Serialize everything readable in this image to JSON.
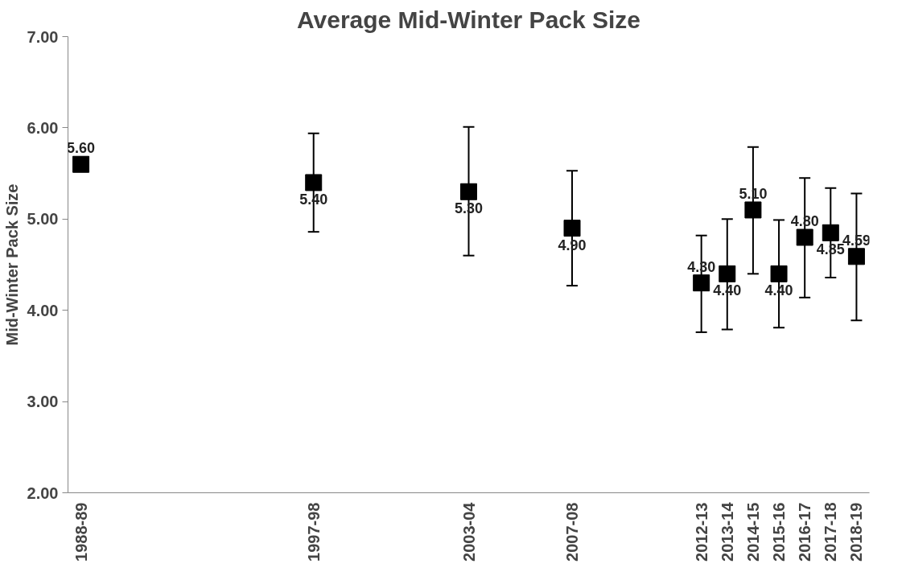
{
  "chart_data": {
    "type": "scatter",
    "title": "Average Mid-Winter Pack Size",
    "ylabel": "Mid-Winter Pack Size",
    "categories": [
      "1988-89",
      null,
      null,
      null,
      null,
      null,
      null,
      null,
      null,
      "1997-98",
      null,
      null,
      null,
      null,
      null,
      "2003-04",
      null,
      null,
      null,
      "2007-08",
      null,
      null,
      null,
      null,
      "2012-13",
      "2013-14",
      "2014-15",
      "2015-16",
      "2016-17",
      "2017-18",
      "2018-19"
    ],
    "series": [
      {
        "color": "#000000",
        "values": [
          5.6,
          null,
          null,
          null,
          null,
          null,
          null,
          null,
          null,
          5.4,
          null,
          null,
          null,
          null,
          null,
          5.3,
          null,
          null,
          null,
          4.9,
          null,
          null,
          null,
          null,
          4.3,
          4.4,
          5.1,
          4.4,
          4.8,
          4.85,
          4.59
        ],
        "errors": [
          null,
          null,
          null,
          null,
          null,
          null,
          null,
          null,
          null,
          [
            4.86,
            5.94
          ],
          null,
          null,
          null,
          null,
          null,
          [
            4.6,
            6.01
          ],
          null,
          null,
          null,
          [
            4.27,
            5.53
          ],
          null,
          null,
          null,
          null,
          [
            3.76,
            4.82
          ],
          [
            3.79,
            5.0
          ],
          [
            4.4,
            5.79
          ],
          [
            3.81,
            4.99
          ],
          [
            4.14,
            5.45
          ],
          [
            4.36,
            5.34
          ],
          [
            3.89,
            5.28
          ]
        ],
        "value_labels": [
          "5.60",
          null,
          null,
          null,
          null,
          null,
          null,
          null,
          null,
          "5.40",
          null,
          null,
          null,
          null,
          null,
          "5.30",
          null,
          null,
          null,
          "4.90",
          null,
          null,
          null,
          null,
          "4.30",
          "4.40",
          "5.10",
          "4.40",
          "4.80",
          "4.85",
          "4.59"
        ]
      }
    ],
    "ylim": [
      2,
      7
    ],
    "yticks": [
      {
        "value": 2,
        "label": "2.00"
      },
      {
        "value": 3,
        "label": "3.00"
      },
      {
        "value": 4,
        "label": "4.00"
      },
      {
        "value": 5,
        "label": "5.00"
      },
      {
        "value": 6,
        "label": "6.00"
      },
      {
        "value": 7,
        "label": "7.00"
      }
    ],
    "marker": "square",
    "grid": false
  }
}
